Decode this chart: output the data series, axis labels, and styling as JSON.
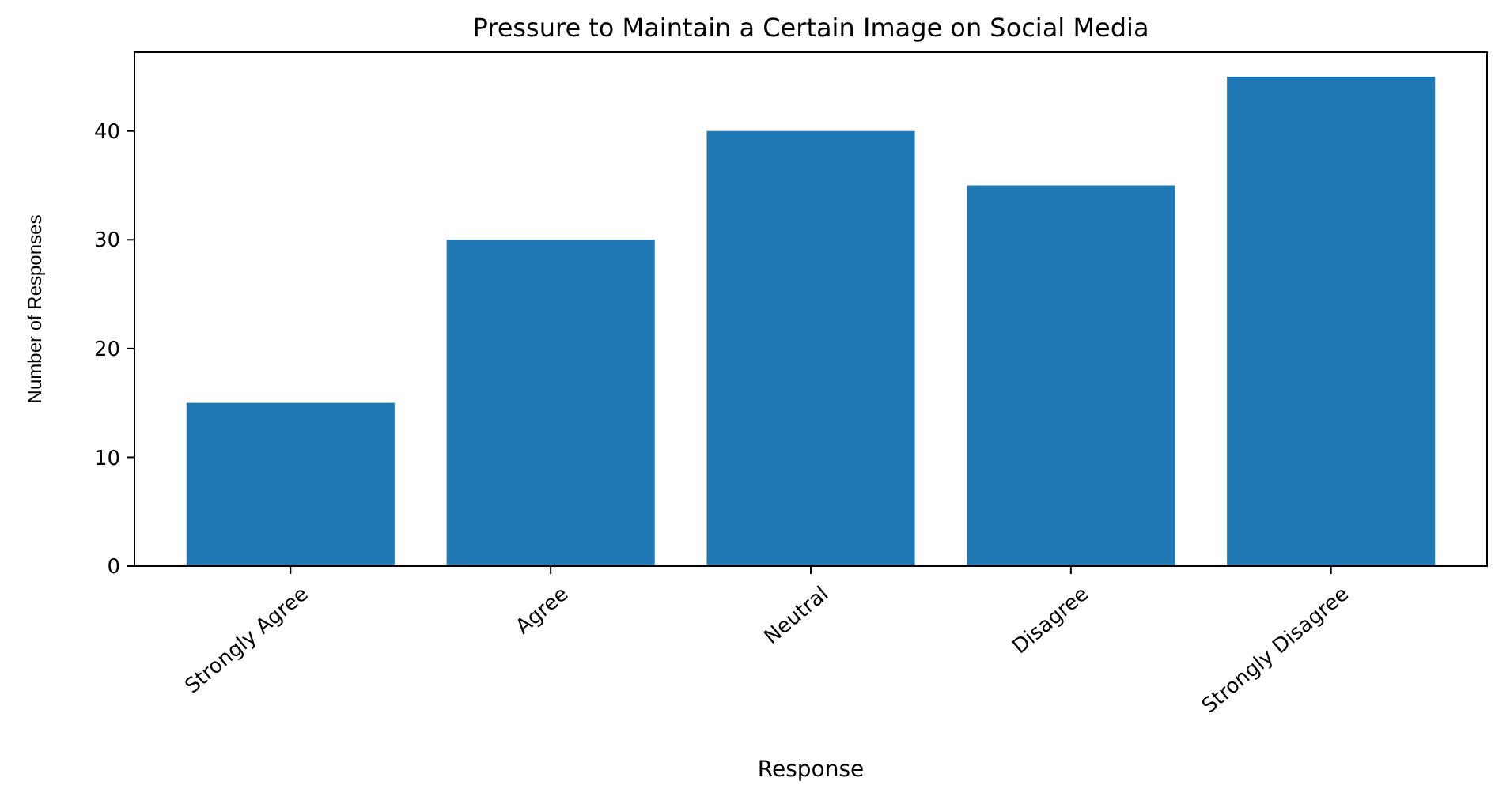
{
  "chart_data": {
    "type": "bar",
    "title": "Pressure to Maintain a Certain Image on Social Media",
    "xlabel": "Response",
    "ylabel": "Number of Responses",
    "categories": [
      "Strongly Agree",
      "Agree",
      "Neutral",
      "Disagree",
      "Strongly Disagree"
    ],
    "values": [
      15,
      30,
      40,
      35,
      45
    ],
    "color": "#1f77b4",
    "ylim": [
      0,
      47.25
    ],
    "yticks": [
      0,
      10,
      20,
      30,
      40
    ],
    "grid": false
  }
}
